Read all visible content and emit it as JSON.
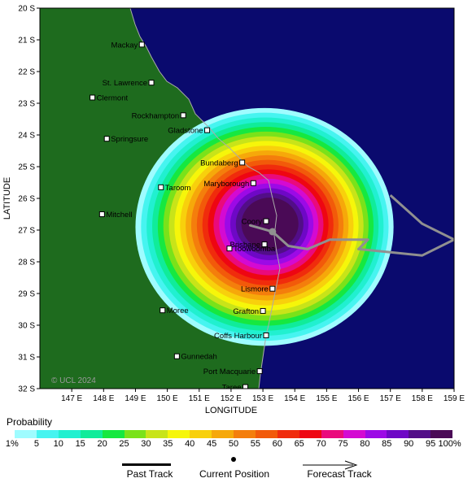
{
  "map": {
    "copyright": "© UCL 2024",
    "x_axis_title": "LONGITUDE",
    "y_axis_title": "LATITUDE",
    "lon_ticks": [
      "147 E",
      "148 E",
      "149 E",
      "150 E",
      "151 E",
      "152 E",
      "153 E",
      "154 E",
      "155 E",
      "156 E",
      "157 E",
      "158 E",
      "159 E"
    ],
    "lat_ticks": [
      "20 S",
      "21 S",
      "22 S",
      "23 S",
      "24 S",
      "25 S",
      "26 S",
      "27 S",
      "28 S",
      "29 S",
      "30 S",
      "31 S",
      "32 S"
    ],
    "lon_range": [
      146,
      159
    ],
    "lat_range": [
      -20,
      -32
    ],
    "colors": {
      "land": "#1e6b1e",
      "ocean": "#0a0a6e",
      "track": "#909090"
    }
  },
  "towns": [
    {
      "name": "Mackay",
      "lon": 149.2,
      "lat": -21.15
    },
    {
      "name": "St. Lawrence",
      "lon": 149.5,
      "lat": -22.35
    },
    {
      "name": "Clermont",
      "lon": 147.65,
      "lat": -22.82
    },
    {
      "name": "Rockhampton",
      "lon": 150.5,
      "lat": -23.38
    },
    {
      "name": "Gladstone",
      "lon": 151.25,
      "lat": -23.85
    },
    {
      "name": "Springsure",
      "lon": 148.1,
      "lat": -24.12
    },
    {
      "name": "Bundaberg",
      "lon": 152.35,
      "lat": -24.87
    },
    {
      "name": "Maryborough",
      "lon": 152.7,
      "lat": -25.52
    },
    {
      "name": "Taroom",
      "lon": 149.8,
      "lat": -25.65
    },
    {
      "name": "Mitchell",
      "lon": 147.95,
      "lat": -26.5
    },
    {
      "name": "Coory",
      "lon": 153.1,
      "lat": -26.72
    },
    {
      "name": "Brisbane",
      "lon": 153.05,
      "lat": -27.45
    },
    {
      "name": "Toowoomba",
      "lon": 151.95,
      "lat": -27.58
    },
    {
      "name": "Lismore",
      "lon": 153.3,
      "lat": -28.85
    },
    {
      "name": "Grafton",
      "lon": 153.0,
      "lat": -29.55
    },
    {
      "name": "Moree",
      "lon": 149.85,
      "lat": -29.53
    },
    {
      "name": "Coffs Harbour",
      "lon": 153.1,
      "lat": -30.32
    },
    {
      "name": "Gunnedah",
      "lon": 150.3,
      "lat": -30.98
    },
    {
      "name": "Port Macquarie",
      "lon": 152.9,
      "lat": -31.45
    },
    {
      "name": "Taree",
      "lon": 152.45,
      "lat": -31.95
    }
  ],
  "forecast_track": {
    "current_position": {
      "lon": 153.3,
      "lat": -27.05
    },
    "points": [
      {
        "lon": 153.3,
        "lat": -27.05
      },
      {
        "lon": 152.6,
        "lat": -26.85
      },
      {
        "lon": 153.3,
        "lat": -27.05
      },
      {
        "lon": 153.8,
        "lat": -27.5
      },
      {
        "lon": 154.4,
        "lat": -27.6
      },
      {
        "lon": 155.1,
        "lat": -27.3
      },
      {
        "lon": 156.0,
        "lat": -27.3
      },
      {
        "lon": 156.3,
        "lat": -27.3
      },
      {
        "lon": 156.0,
        "lat": -27.6
      },
      {
        "lon": 157.0,
        "lat": -27.7
      },
      {
        "lon": 158.0,
        "lat": -27.8
      },
      {
        "lon": 159.0,
        "lat": -27.3
      },
      {
        "lon": 158.0,
        "lat": -26.8
      },
      {
        "lon": 157.0,
        "lat": -25.9
      }
    ]
  },
  "probability_zone": {
    "center_lon": 153.05,
    "center_lat": -26.9,
    "radius_lon": 4.05,
    "radius_lat": 3.75,
    "bands_pct": [
      1,
      5,
      10,
      15,
      20,
      25,
      30,
      35,
      40,
      45,
      50,
      55,
      60,
      65,
      70,
      75,
      80,
      85,
      90,
      95
    ]
  },
  "legend": {
    "title": "Probability",
    "labels": [
      "1%",
      "5",
      "10",
      "15",
      "20",
      "25",
      "30",
      "35",
      "40",
      "45",
      "50",
      "55",
      "60",
      "65",
      "70",
      "75",
      "80",
      "85",
      "90",
      "95",
      "100%"
    ],
    "colors": [
      "#9ffcff",
      "#46f4f0",
      "#21f0d0",
      "#10ec9a",
      "#16e840",
      "#7ae21a",
      "#c8e419",
      "#f6f60a",
      "#f8d00c",
      "#f6a80a",
      "#f47e0c",
      "#f25a0a",
      "#f02c0c",
      "#ee0612",
      "#ea0a7c",
      "#d40ad2",
      "#9c0ae6",
      "#6e08c6",
      "#520e88",
      "#4a0a56"
    ]
  },
  "track_key": {
    "past": "Past Track",
    "current": "Current Position",
    "forecast": "Forecast Track"
  }
}
